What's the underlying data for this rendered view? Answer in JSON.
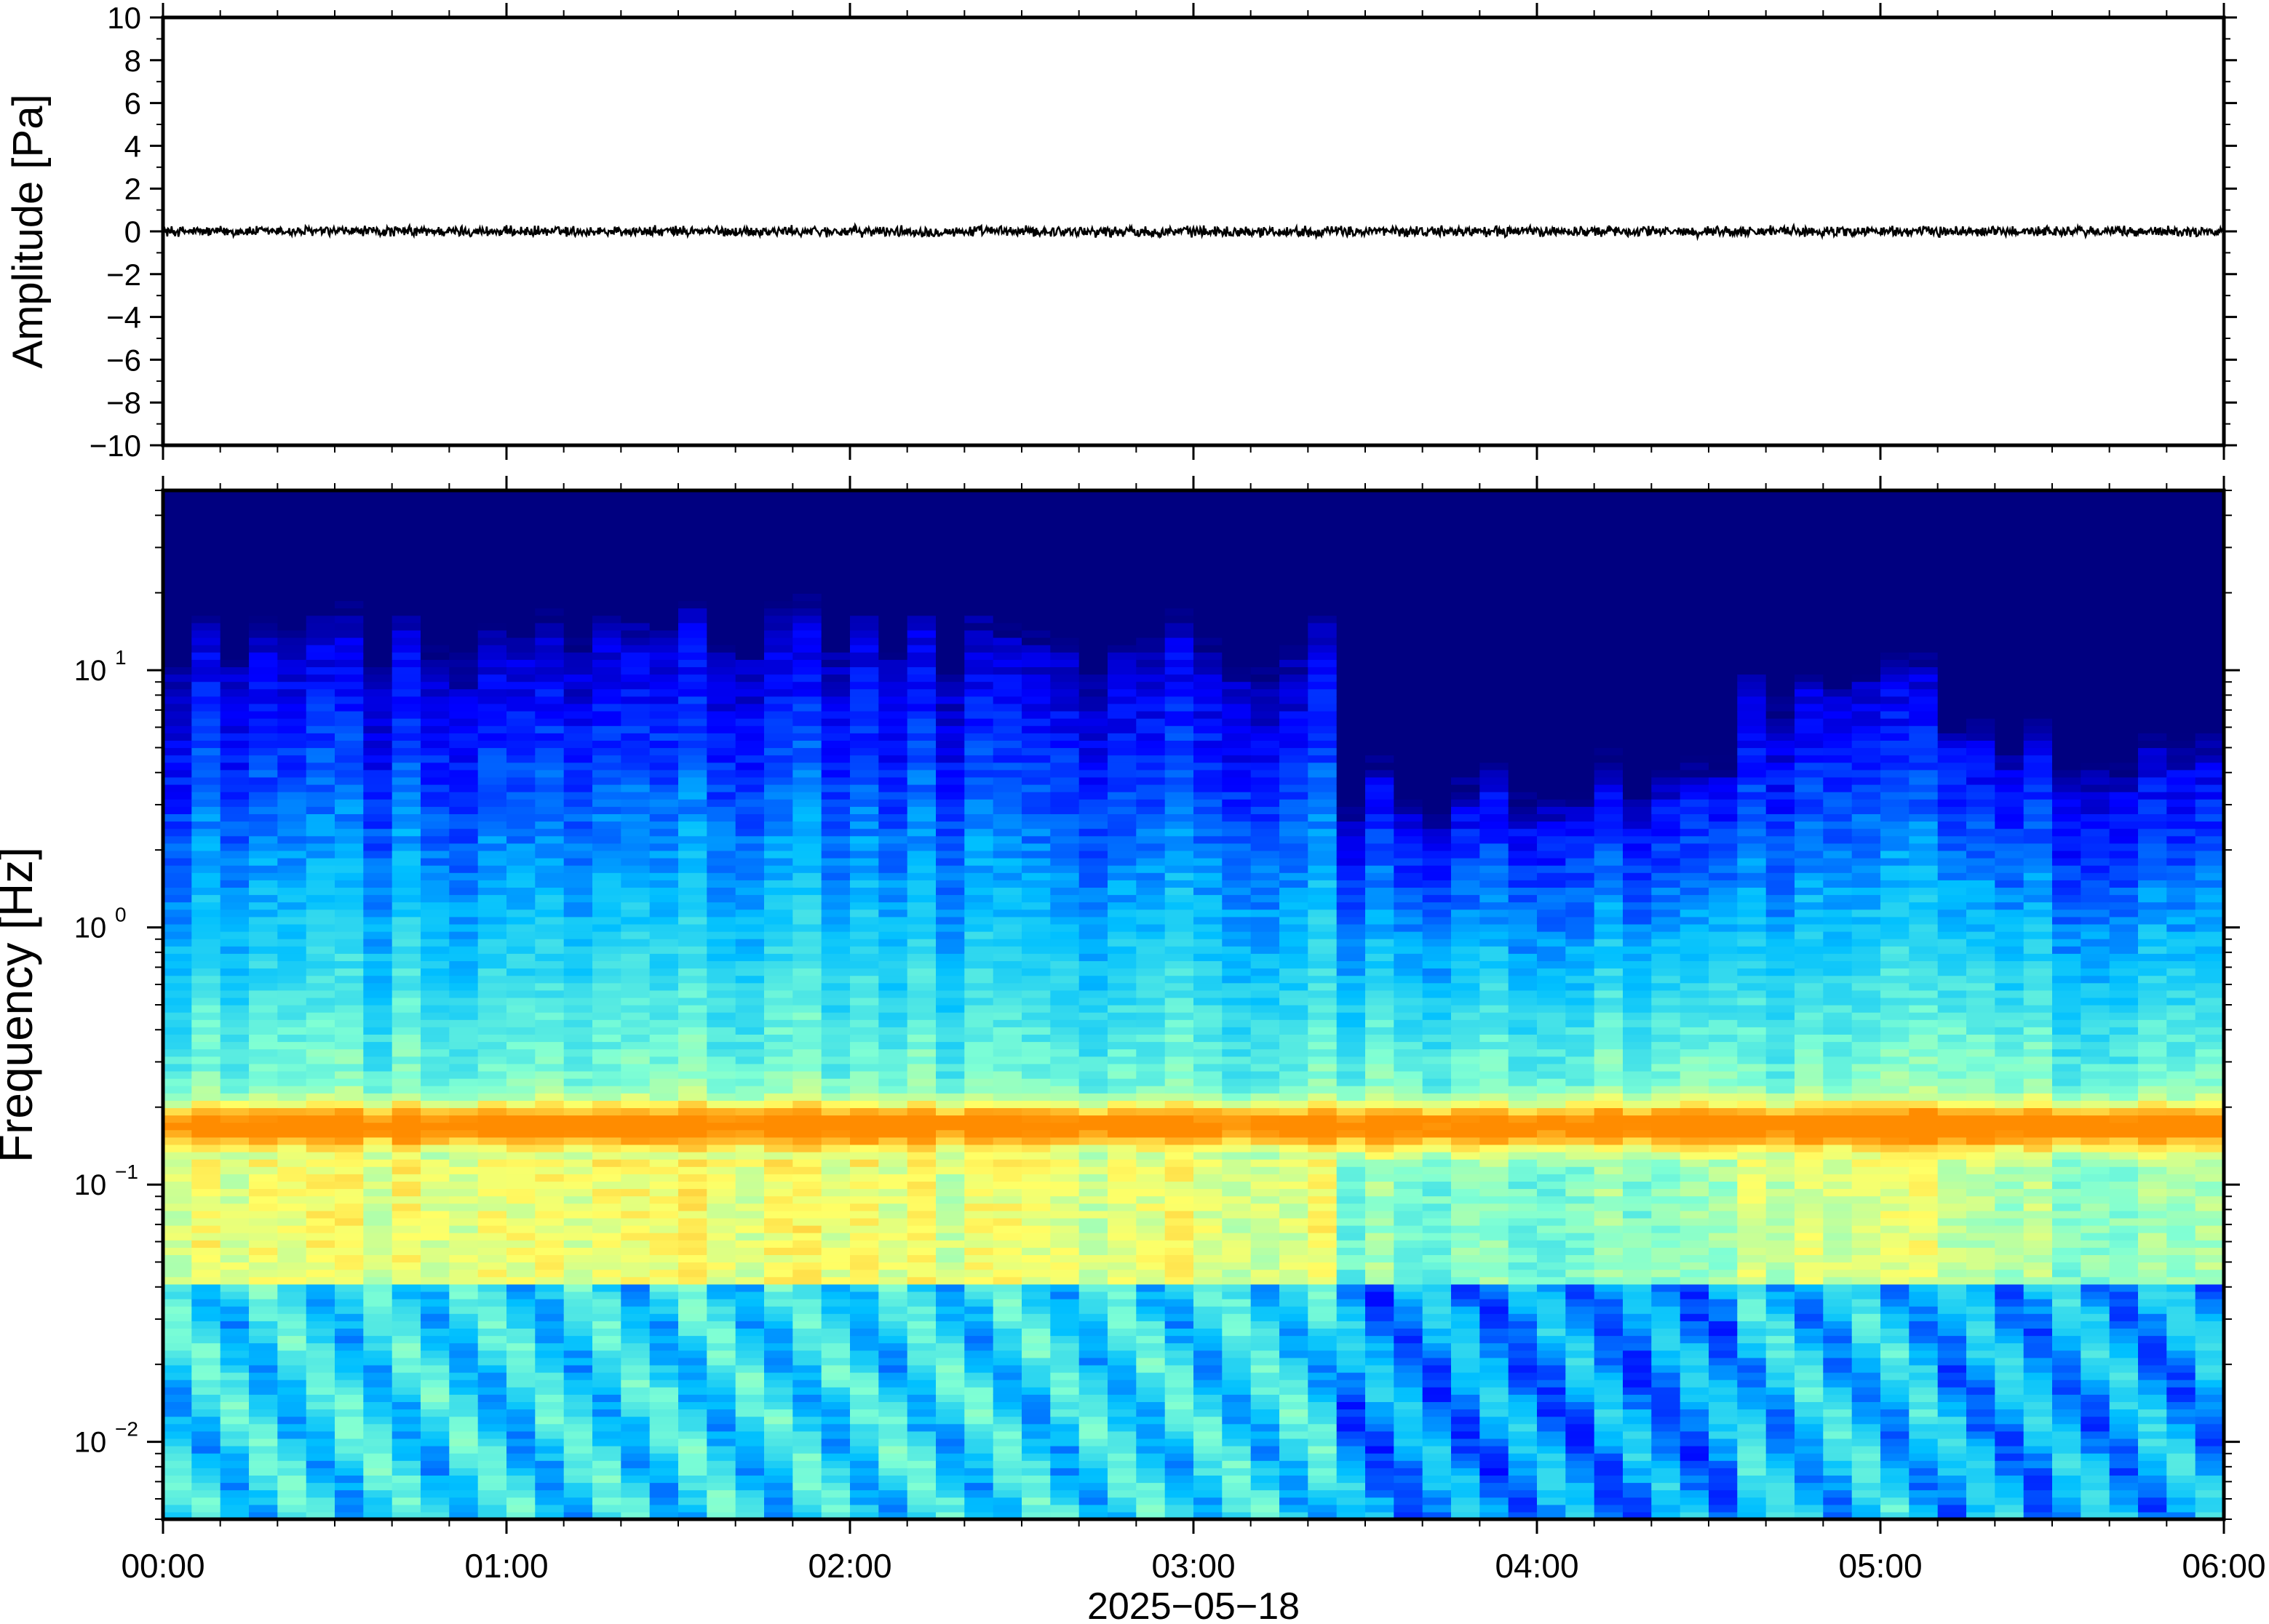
{
  "chart_data": [
    {
      "type": "line",
      "panel": "waveform",
      "title": "",
      "xlabel": "",
      "ylabel": "Amplitude [Pa]",
      "ylim": [
        -10,
        10
      ],
      "yticks": [
        -10,
        -8,
        -6,
        -4,
        -2,
        0,
        2,
        4,
        6,
        8,
        10
      ],
      "ytick_labels": [
        "−10",
        "−8",
        "−6",
        "−4",
        "−2",
        "0",
        "2",
        "4",
        "6",
        "8",
        "10"
      ],
      "xlim_hours": [
        0,
        6
      ],
      "series": [
        {
          "color": "#000000",
          "baseline": 0,
          "approx_peak_abs_amplitude": 0.3
        }
      ],
      "grid": false
    },
    {
      "type": "heatmap",
      "panel": "spectrogram",
      "title": "",
      "xlabel": "2025−05−18",
      "ylabel": "Frequency [Hz]",
      "yscale": "log",
      "ylim": [
        0.005,
        50
      ],
      "yticks": [
        0.01,
        0.1,
        1,
        10
      ],
      "ytick_labels": [
        {
          "base": "10",
          "exp": "−2"
        },
        {
          "base": "10",
          "exp": "−1"
        },
        {
          "base": "10",
          "exp": "0"
        },
        {
          "base": "10",
          "exp": "1"
        }
      ],
      "x_tick_labels": [
        "00:00",
        "01:00",
        "02:00",
        "03:00",
        "04:00",
        "05:00",
        "06:00"
      ],
      "xlim_hours": [
        0,
        6
      ],
      "colormap": "jet",
      "colors": [
        "#000080",
        "#0000ff",
        "#00bfff",
        "#7fffd4",
        "#ffff66",
        "#ff8c00"
      ],
      "features": {
        "microseism_band_hz": [
          0.13,
          0.25
        ],
        "microseism_peak_hz": 0.17,
        "high_freq_energy_drop_start_hour": 3.4,
        "high_freq_energy_resume_hour": 4.6
      },
      "grid": false
    }
  ]
}
